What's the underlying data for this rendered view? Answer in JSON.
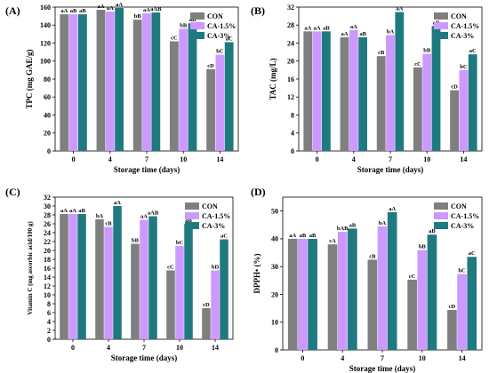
{
  "colors": {
    "CON": "#7f7f7f",
    "CA-1.5%": "#cc99ff",
    "CA-3%": "#1f7a80"
  },
  "chart_data": [
    {
      "panel": "(A)",
      "type": "bar",
      "ylabel": "TPC (mg GAE/g)",
      "xlabel": "Storage time (days)",
      "categories": [
        "0",
        "4",
        "7",
        "10",
        "14"
      ],
      "ylim": [
        0,
        160
      ],
      "yticks": [
        0,
        20,
        40,
        60,
        80,
        100,
        120,
        140,
        160
      ],
      "legend_position": "top-right",
      "series": [
        {
          "name": "CON",
          "values": [
            152,
            157,
            146,
            122,
            91
          ],
          "labels": [
            "aA",
            "aA",
            "bB",
            "cC",
            "cD"
          ]
        },
        {
          "name": "CA-1.5%",
          "values": [
            152,
            155,
            153,
            136,
            107
          ],
          "labels": [
            "aB",
            "aA",
            "aA",
            "bB",
            "bC"
          ]
        },
        {
          "name": "CA-3%",
          "values": [
            152,
            159,
            154,
            142,
            121
          ],
          "labels": [
            "aB",
            "aA",
            "aAB",
            "aB",
            "aC"
          ]
        }
      ]
    },
    {
      "panel": "(B)",
      "type": "bar",
      "ylabel": "TAC (mg/L)",
      "xlabel": "Storage time (days)",
      "categories": [
        "0",
        "4",
        "7",
        "10",
        "14"
      ],
      "ylim": [
        0,
        32
      ],
      "yticks": [
        0,
        4,
        8,
        12,
        16,
        20,
        24,
        28,
        32
      ],
      "legend_position": "top-right",
      "series": [
        {
          "name": "CON",
          "values": [
            26.6,
            25.3,
            21.1,
            18.6,
            13.5
          ],
          "labels": [
            "aA",
            "aA",
            "cB",
            "cC",
            "cD"
          ]
        },
        {
          "name": "CA-1.5%",
          "values": [
            26.6,
            26.9,
            25.8,
            21.6,
            18.0
          ],
          "labels": [
            "aA",
            "aA",
            "bA",
            "bB",
            "bC"
          ]
        },
        {
          "name": "CA-3%",
          "values": [
            26.6,
            25.3,
            30.9,
            27.8,
            21.5
          ],
          "labels": [
            "aB",
            "aB",
            "aA",
            "aB",
            "aC"
          ]
        }
      ]
    },
    {
      "panel": "(C)",
      "type": "bar",
      "ylabel": "Vitamin C (mg ascorbic acid/100 g)",
      "xlabel": "Storage time (days)",
      "categories": [
        "0",
        "4",
        "7",
        "10",
        "14"
      ],
      "ylim": [
        0,
        32
      ],
      "yticks": [
        0,
        2,
        4,
        6,
        8,
        10,
        12,
        14,
        16,
        18,
        20,
        22,
        24,
        26,
        28,
        30,
        32
      ],
      "legend_position": "top-right",
      "series": [
        {
          "name": "CON",
          "values": [
            28.2,
            27.0,
            21.5,
            15.5,
            7.0
          ],
          "labels": [
            "aA",
            "bA",
            "bB",
            "cC",
            "cD"
          ]
        },
        {
          "name": "CA-1.5%",
          "values": [
            28.2,
            25.3,
            26.9,
            21.0,
            15.5
          ],
          "labels": [
            "aA",
            "cB",
            "aA",
            "bC",
            "bD"
          ]
        },
        {
          "name": "CA-3%",
          "values": [
            28.2,
            30.0,
            27.7,
            26.0,
            22.5
          ],
          "labels": [
            "aB",
            "aA",
            "aAB",
            "aB",
            "aC"
          ]
        }
      ]
    },
    {
      "panel": "(D)",
      "type": "bar",
      "ylabel": "DPPH• (%)",
      "xlabel": "Storage time (days)",
      "categories": [
        "0",
        "4",
        "7",
        "10",
        "14"
      ],
      "ylim": [
        0,
        55
      ],
      "yticks": [
        0,
        10,
        20,
        30,
        40,
        50
      ],
      "legend_position": "top-right",
      "series": [
        {
          "name": "CON",
          "values": [
            40,
            38,
            32.5,
            25.3,
            14.4
          ],
          "labels": [
            "aA",
            "cA",
            "cB",
            "cC",
            "cD"
          ]
        },
        {
          "name": "CA-1.5%",
          "values": [
            40,
            42.5,
            44.5,
            36.0,
            27.3
          ],
          "labels": [
            "aB",
            "bAB",
            "bA",
            "bB",
            "bC"
          ]
        },
        {
          "name": "CA-3%",
          "values": [
            40,
            43.7,
            49.6,
            41.5,
            33.5
          ],
          "labels": [
            "aB",
            "aB",
            "aA",
            "aB",
            "aC"
          ]
        }
      ]
    }
  ]
}
